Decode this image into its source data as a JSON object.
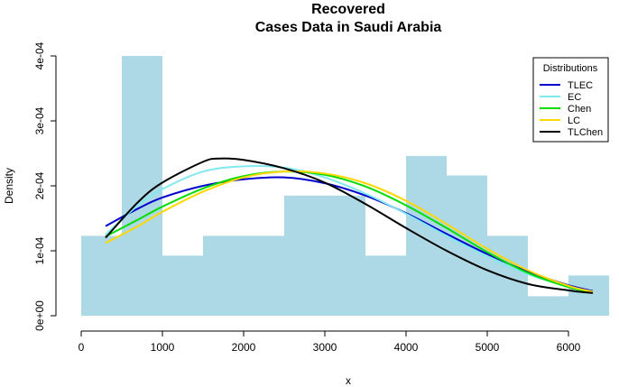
{
  "chart_data": {
    "type": "histogram",
    "title": "Recovered",
    "subtitle": "Cases Data in Saudi Arabia",
    "xlabel": "x",
    "ylabel": "Density",
    "xlim": [
      0,
      6500
    ],
    "ylim": [
      0,
      0.0004
    ],
    "x_ticks": [
      0,
      1000,
      2000,
      3000,
      4000,
      5000,
      6000
    ],
    "x_tick_labels": [
      "0",
      "1000",
      "2000",
      "3000",
      "4000",
      "5000",
      "6000"
    ],
    "y_ticks": [
      0,
      0.0001,
      0.0002,
      0.0003,
      0.0004
    ],
    "y_tick_labels": [
      "0e+00",
      "1e-04",
      "2e-04",
      "3e-04",
      "4e-04"
    ],
    "bar_color": "#add8e6",
    "bins": [
      {
        "x0": 0,
        "x1": 500,
        "density": 0.000123
      },
      {
        "x0": 500,
        "x1": 1000,
        "density": 0.0004
      },
      {
        "x0": 1000,
        "x1": 1500,
        "density": 9.25e-05
      },
      {
        "x0": 1500,
        "x1": 2500,
        "density": 0.000123
      },
      {
        "x0": 2500,
        "x1": 3500,
        "density": 0.000185
      },
      {
        "x0": 3500,
        "x1": 4000,
        "density": 9.25e-05
      },
      {
        "x0": 4000,
        "x1": 4500,
        "density": 0.000246
      },
      {
        "x0": 4500,
        "x1": 5000,
        "density": 0.000216
      },
      {
        "x0": 5000,
        "x1": 5500,
        "density": 0.000123
      },
      {
        "x0": 5500,
        "x1": 6000,
        "density": 3e-05
      },
      {
        "x0": 6000,
        "x1": 6500,
        "density": 6.2e-05
      }
    ],
    "legend": {
      "title": "Distributions",
      "position": "top-right"
    },
    "series": [
      {
        "name": "TLEC",
        "color": "#0000cd",
        "x": [
          300,
          700,
          1000,
          1500,
          2000,
          2500,
          3000,
          3500,
          4000,
          4500,
          5000,
          5500,
          6000,
          6300
        ],
        "y": [
          0.000138,
          0.000165,
          0.000182,
          0.0002,
          0.00021,
          0.000213,
          0.000204,
          0.000185,
          0.000158,
          0.000126,
          9.5e-05,
          6.8e-05,
          4.7e-05,
          3.8e-05
        ]
      },
      {
        "name": "EC",
        "color": "#7fe9ee",
        "x": [
          300,
          700,
          1000,
          1500,
          2000,
          2500,
          3000,
          3500,
          4000,
          4500,
          5000,
          5500,
          6000,
          6300
        ],
        "y": [
          0.000125,
          0.00017,
          0.000195,
          0.000222,
          0.00023,
          0.000228,
          0.000213,
          0.000188,
          0.000157,
          0.000123,
          9.1e-05,
          6.4e-05,
          4.5e-05,
          3.7e-05
        ]
      },
      {
        "name": "Chen",
        "color": "#00dd00",
        "x": [
          300,
          700,
          1000,
          1500,
          2000,
          2500,
          3000,
          3500,
          4000,
          4500,
          5000,
          5500,
          6000,
          6300
        ],
        "y": [
          0.000122,
          0.000148,
          0.000168,
          0.000196,
          0.000215,
          0.000222,
          0.000217,
          0.000199,
          0.00017,
          0.000135,
          9.8e-05,
          6.6e-05,
          4.4e-05,
          3.6e-05
        ]
      },
      {
        "name": "LC",
        "color": "#ffd700",
        "x": [
          300,
          700,
          1000,
          1500,
          2000,
          2500,
          3000,
          3500,
          4000,
          4500,
          5000,
          5500,
          6000,
          6300
        ],
        "y": [
          0.000112,
          0.000138,
          0.00016,
          0.000191,
          0.000213,
          0.000222,
          0.000219,
          0.000204,
          0.000177,
          0.000141,
          0.000103,
          7e-05,
          4.6e-05,
          3.7e-05
        ]
      },
      {
        "name": "TLChen",
        "color": "#000000",
        "x": [
          300,
          700,
          1000,
          1500,
          1700,
          2000,
          2500,
          3000,
          3500,
          4000,
          4500,
          5000,
          5500,
          6000,
          6300
        ],
        "y": [
          0.00012,
          0.000175,
          0.000205,
          0.000237,
          0.000242,
          0.00024,
          0.000227,
          0.000205,
          0.000172,
          0.000135,
          0.0001,
          7e-05,
          4.9e-05,
          3.9e-05,
          3.5e-05
        ]
      }
    ]
  }
}
